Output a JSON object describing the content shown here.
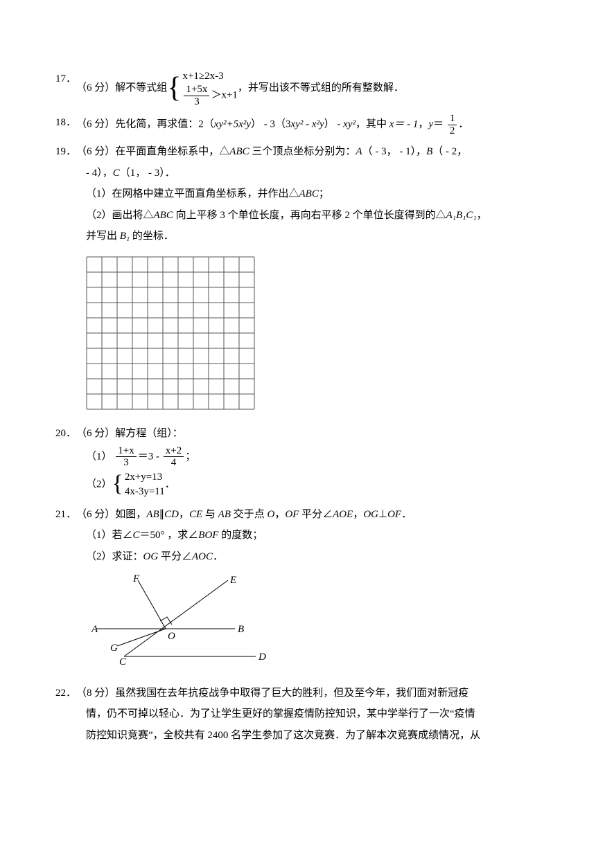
{
  "q17": {
    "num": "17．",
    "points": "（6 分）",
    "lead": "解不等式组",
    "line1_a": "x+1",
    "line1_op": "≥",
    "line1_b": "2x-3",
    "line2_num": "1+5x",
    "line2_den": "3",
    "line2_op": "＞",
    "line2_rhs": "x+1",
    "tail": "，并写出该不等式组的所有整数解．"
  },
  "q18": {
    "num": "18．",
    "points": "（6 分）",
    "text_a": "先化简，再求值：2（",
    "expr1": "xy²+5x²y",
    "text_b": "） - 3（3",
    "expr2": "xy² - x²y",
    "text_c": "） - ",
    "expr3": "xy²",
    "text_d": "，其中 ",
    "xval": "x＝ - 1",
    "text_e": "，",
    "yvar": "y",
    "text_f": "＝ ",
    "frac_num": "1",
    "frac_den": "2",
    "text_g": "．"
  },
  "q19": {
    "num": "19．",
    "points": "（6 分）",
    "line1a": "在平面直角坐标系中，△",
    "abc": "ABC",
    "line1b": " 三个顶点坐标分别为：",
    "A": "A",
    "Acoord": "（ - 3， - 1）",
    "B": "B",
    "Bcoord": "（ - 2，",
    "line2a": " - 4），",
    "C": "C",
    "Ccoord": "（1， - 3）．",
    "sub1": "（1）在网格中建立平面直角坐标系，并作出△",
    "sub1tail": "；",
    "sub2a": "（2）画出将△",
    "sub2b": " 向上平移 3 个单位长度，再向右平移 2 个单位长度得到的△",
    "A1B1C1": "A₁B₁C₁",
    "sub2tail": "，",
    "sub3a": "并写出 ",
    "B1": "B₁",
    "sub3b": " 的坐标．",
    "grid": {
      "cols": 11,
      "rows": 10,
      "cell": 22,
      "stroke": "#555555"
    }
  },
  "q20": {
    "num": "20．",
    "points": "（6 分）",
    "text": "解方程（组）：",
    "sub1": "（1）",
    "eq1_l_num": "1+x",
    "eq1_l_den": "3",
    "eq1_mid": "＝3 - ",
    "eq1_r_num": "x+2",
    "eq1_r_den": "4",
    "eq1_tail": "；",
    "sub2": "（2）",
    "sys_line1": "2x+y=13",
    "sys_line2": "4x-3y=11",
    "sys_tail": "．"
  },
  "q21": {
    "num": "21．",
    "points": "（6 分）",
    "text_a": "如图，",
    "ab": "AB",
    "cd": "CD",
    "text_b": "∥",
    "text_c": "，",
    "ce": "CE",
    "text_d": " 与 ",
    "text_e": " 交于点 ",
    "O": "O",
    "text_f": "，",
    "OF": "OF",
    "text_g": " 平分∠",
    "AOE": "AOE",
    "text_h": "，",
    "OG": "OG",
    "text_i": "⊥",
    "text_j": "．",
    "sub1a": "（1）若∠",
    "Cang": "C",
    "sub1b": "＝50° ，求∠",
    "BOF": "BOF",
    "sub1c": " 的度数；",
    "sub2a": "（2）求证：",
    "sub2b": " 平分∠",
    "AOC": "AOC",
    "sub2c": "．",
    "figure": {
      "A": "A",
      "B": "B",
      "C": "C",
      "D": "D",
      "E": "E",
      "F": "F",
      "G": "G",
      "O": "O"
    }
  },
  "q22": {
    "num": "22．",
    "points": "（8 分）",
    "line1": "虽然我国在去年抗疫战争中取得了巨大的胜利，但及至今年，我们面对新冠疫",
    "line2": "情，仍不可掉以轻心．为了让学生更好的掌握疫情防控知识，某中学举行了一次“疫情",
    "line3": "防控知识竞赛”，全校共有 2400 名学生参加了这次竞赛．为了解本次竞赛成绩情况，从"
  }
}
